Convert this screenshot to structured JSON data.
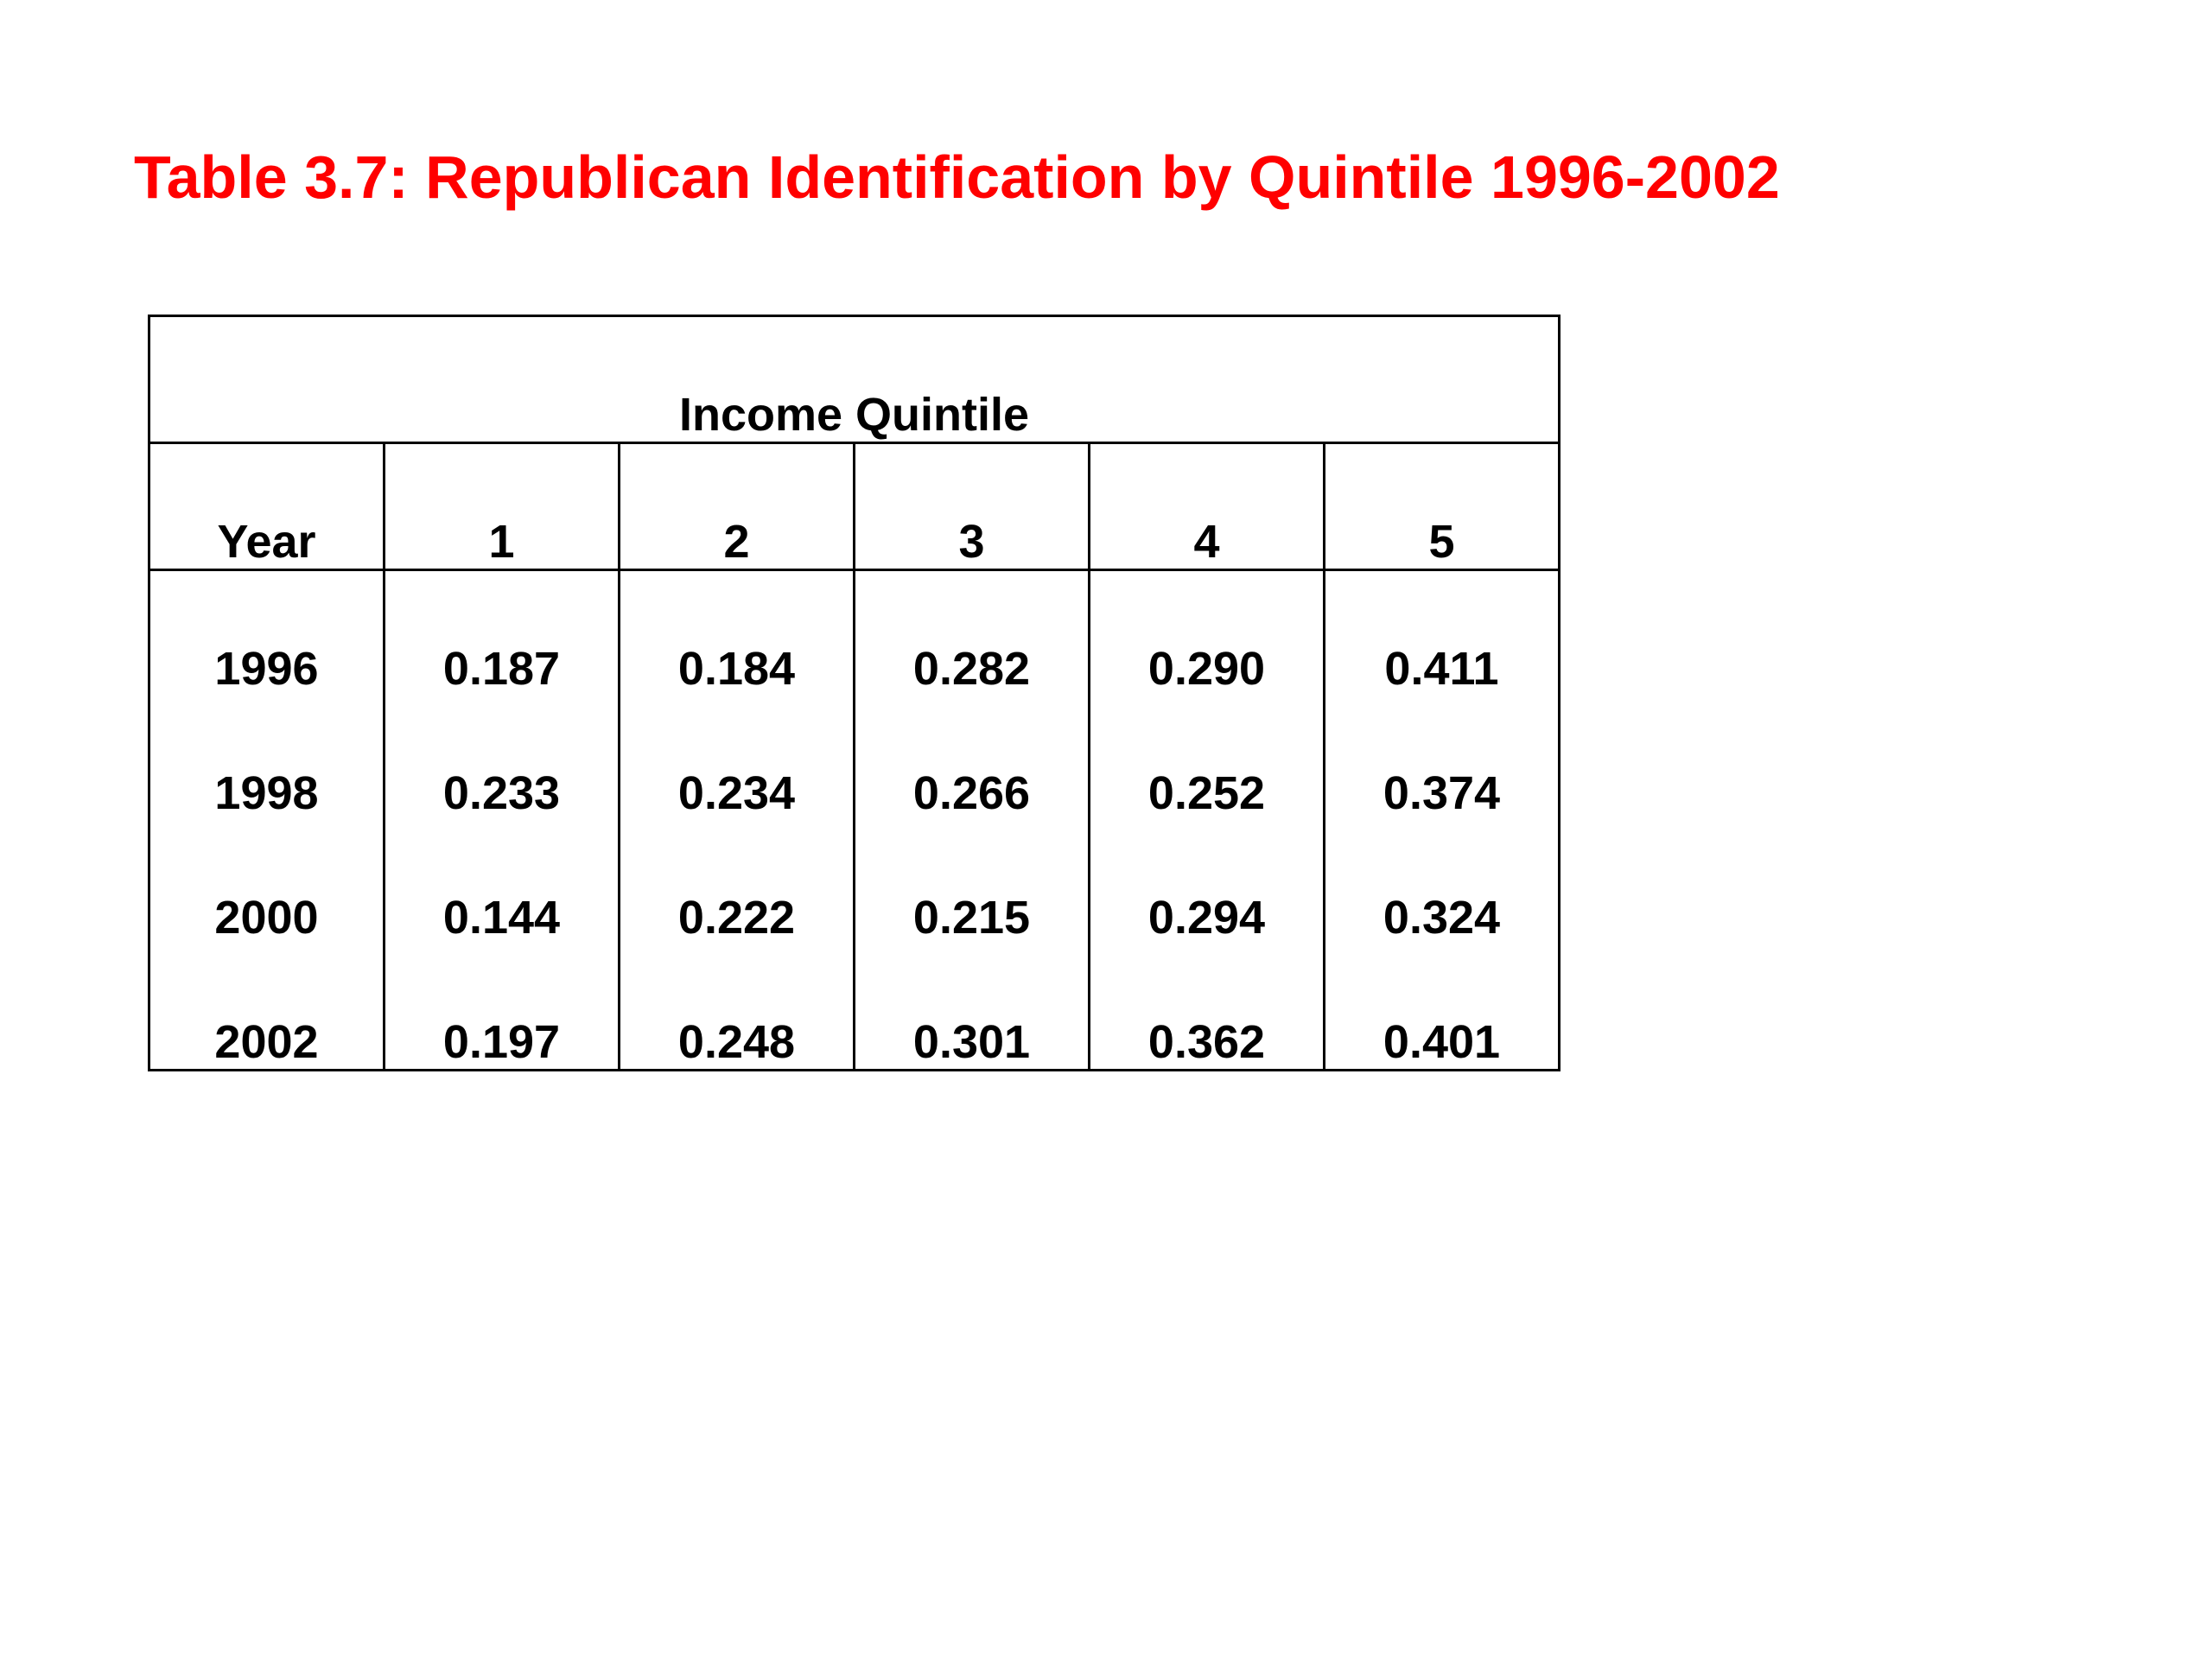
{
  "title": "Table 3.7:  Republican Identification by Quintile 1996-2002",
  "colors": {
    "title": "#ff0000",
    "text": "#000000",
    "background": "#ffffff"
  },
  "table": {
    "group_header": "Income Quintile",
    "columns": [
      "Year",
      "1",
      "2",
      "3",
      "4",
      "5"
    ],
    "rows": [
      [
        "1996",
        "0.187",
        "0.184",
        "0.282",
        "0.290",
        "0.411"
      ],
      [
        "1998",
        "0.233",
        "0.234",
        "0.266",
        "0.252",
        "0.374"
      ],
      [
        "2000",
        "0.144",
        "0.222",
        "0.215",
        "0.294",
        "0.324"
      ],
      [
        "2002",
        "0.197",
        "0.248",
        "0.301",
        "0.362",
        "0.401"
      ]
    ]
  }
}
